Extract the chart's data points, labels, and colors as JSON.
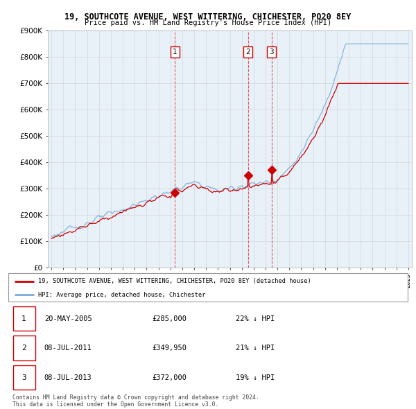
{
  "title": "19, SOUTHCOTE AVENUE, WEST WITTERING, CHICHESTER, PO20 8EY",
  "subtitle": "Price paid vs. HM Land Registry's House Price Index (HPI)",
  "ylim": [
    0,
    900000
  ],
  "yticks": [
    0,
    100000,
    200000,
    300000,
    400000,
    500000,
    600000,
    700000,
    800000,
    900000
  ],
  "ytick_labels": [
    "£0",
    "£100K",
    "£200K",
    "£300K",
    "£400K",
    "£500K",
    "£600K",
    "£700K",
    "£800K",
    "£900K"
  ],
  "line_color_red": "#cc0000",
  "line_color_blue": "#7aaddb",
  "bg_color": "#e8f0f8",
  "transactions": [
    {
      "date_num": 2005.38,
      "price": 285000,
      "label": "1"
    },
    {
      "date_num": 2011.52,
      "price": 349950,
      "label": "2"
    },
    {
      "date_num": 2013.52,
      "price": 372000,
      "label": "3"
    }
  ],
  "transaction_vlines": [
    2005.38,
    2011.52,
    2013.52
  ],
  "legend_entries": [
    {
      "label": "19, SOUTHCOTE AVENUE, WEST WITTERING, CHICHESTER, PO20 8EY (detached house)",
      "color": "#cc0000"
    },
    {
      "label": "HPI: Average price, detached house, Chichester",
      "color": "#7aaddb"
    }
  ],
  "table_rows": [
    {
      "num": "1",
      "date": "20-MAY-2005",
      "price": "£285,000",
      "hpi": "22% ↓ HPI"
    },
    {
      "num": "2",
      "date": "08-JUL-2011",
      "price": "£349,950",
      "hpi": "21% ↓ HPI"
    },
    {
      "num": "3",
      "date": "08-JUL-2013",
      "price": "£372,000",
      "hpi": "19% ↓ HPI"
    }
  ],
  "footer": "Contains HM Land Registry data © Crown copyright and database right 2024.\nThis data is licensed under the Open Government Licence v3.0.",
  "background_color": "#ffffff",
  "grid_color": "#cccccc"
}
